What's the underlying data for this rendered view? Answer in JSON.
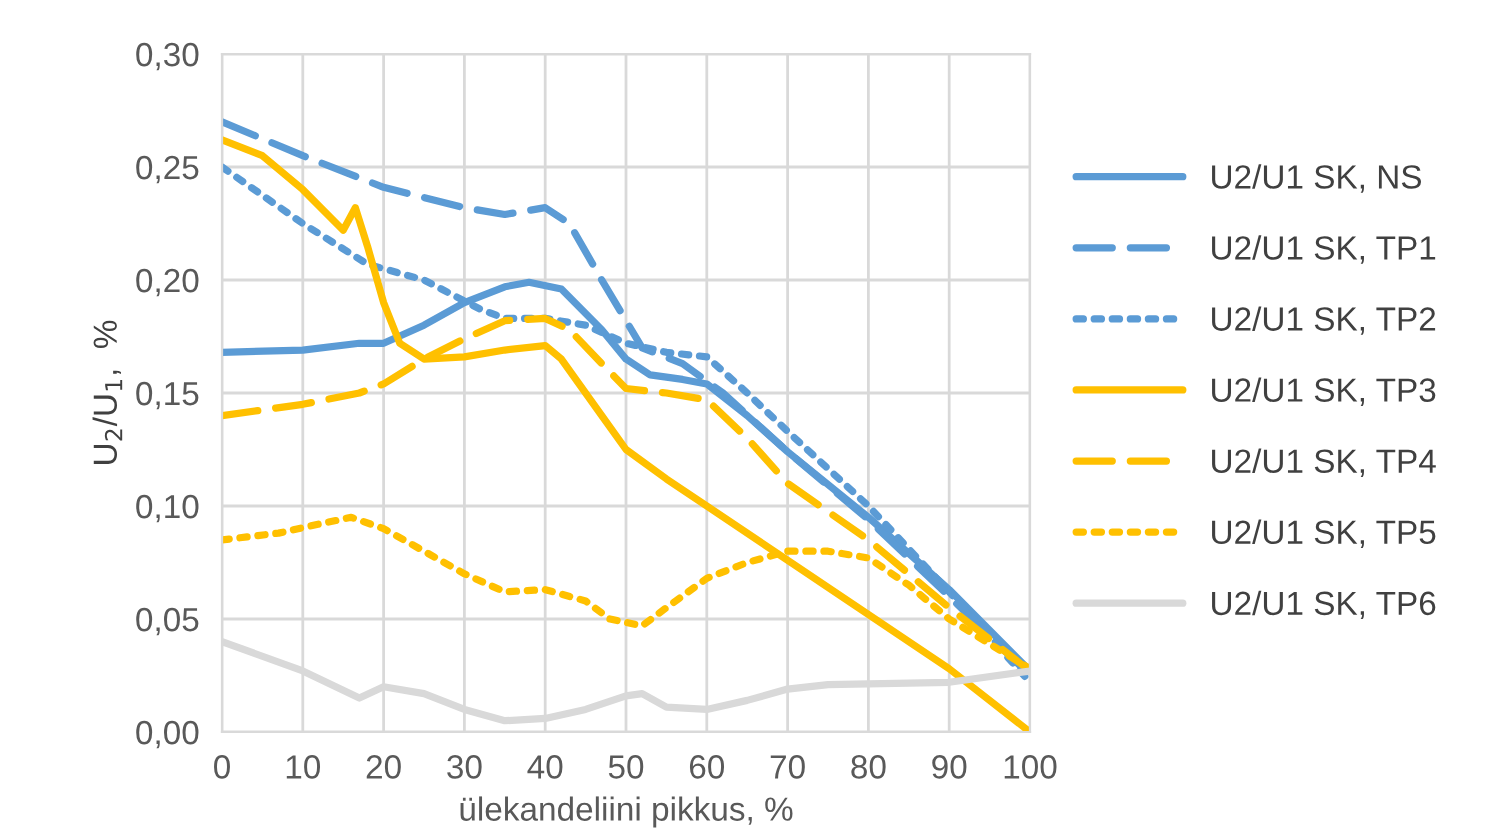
{
  "chart_data": {
    "type": "line",
    "xlabel": "ülekandeliini pikkus, %",
    "ylabel": "U$_{2}$/U$_{1}$,  %",
    "xlim": [
      0,
      100
    ],
    "xticks": [
      0,
      10,
      20,
      30,
      40,
      50,
      60,
      70,
      80,
      90,
      100
    ],
    "ylim": [
      0,
      0.3
    ],
    "yticks": [
      {
        "value": 0,
        "label": "0,00"
      },
      {
        "value": 0.05,
        "label": "0,05"
      },
      {
        "value": 0.1,
        "label": "0,10"
      },
      {
        "value": 0.15,
        "label": "0,15"
      },
      {
        "value": 0.2,
        "label": "0,20"
      },
      {
        "value": 0.25,
        "label": "0,25"
      },
      {
        "value": 0.3,
        "label": "0,30"
      }
    ],
    "grid": true,
    "legend": "right",
    "series": [
      {
        "name": "U2/U1 SK, NS",
        "color": "#5b9bd5",
        "line_style": "solid",
        "x": [
          0,
          10,
          17,
          20,
          25,
          30,
          35,
          38,
          42,
          47,
          50,
          53,
          57,
          60,
          65,
          70,
          80,
          90,
          100
        ],
        "values": [
          0.168,
          0.169,
          0.172,
          0.172,
          0.18,
          0.19,
          0.197,
          0.199,
          0.196,
          0.178,
          0.165,
          0.158,
          0.156,
          0.154,
          0.14,
          0.124,
          0.095,
          0.063,
          0.027
        ]
      },
      {
        "name": "U2/U1 SK, TP1",
        "color": "#5b9bd5",
        "line_style": "dashed",
        "x": [
          0,
          10,
          20,
          30,
          35,
          40,
          43,
          47,
          52,
          57,
          62,
          70,
          80,
          90,
          100
        ],
        "values": [
          0.27,
          0.255,
          0.241,
          0.232,
          0.229,
          0.232,
          0.225,
          0.2,
          0.17,
          0.163,
          0.15,
          0.124,
          0.094,
          0.06,
          0.025
        ]
      },
      {
        "name": "U2/U1 SK, TP2",
        "color": "#5b9bd5",
        "line_style": "dotted",
        "x": [
          0,
          10,
          18,
          25,
          32,
          35,
          40,
          45,
          50,
          55,
          60,
          65,
          70,
          80,
          90,
          100
        ],
        "values": [
          0.25,
          0.225,
          0.207,
          0.2,
          0.187,
          0.183,
          0.183,
          0.18,
          0.172,
          0.168,
          0.166,
          0.15,
          0.133,
          0.1,
          0.062,
          0.022
        ]
      },
      {
        "name": "U2/U1 SK, TP3",
        "color": "#ffc000",
        "line_style": "solid",
        "x": [
          0,
          5,
          10,
          15,
          16.5,
          18,
          20,
          22,
          25,
          30,
          35,
          40,
          42,
          47,
          50,
          55,
          60,
          70,
          80,
          90,
          100
        ],
        "values": [
          0.262,
          0.255,
          0.24,
          0.222,
          0.232,
          0.215,
          0.19,
          0.172,
          0.165,
          0.166,
          0.169,
          0.171,
          0.165,
          0.14,
          0.125,
          0.112,
          0.1,
          0.076,
          0.052,
          0.028,
          0.0
        ]
      },
      {
        "name": "U2/U1 SK, TP4",
        "color": "#ffc000",
        "line_style": "dashed",
        "x": [
          0,
          10,
          17,
          20,
          25,
          30,
          35,
          40,
          43,
          47,
          50,
          55,
          60,
          65,
          70,
          80,
          90,
          100
        ],
        "values": [
          0.14,
          0.145,
          0.15,
          0.154,
          0.165,
          0.174,
          0.182,
          0.183,
          0.178,
          0.163,
          0.152,
          0.15,
          0.147,
          0.13,
          0.11,
          0.085,
          0.055,
          0.027
        ]
      },
      {
        "name": "U2/U1 SK, TP5",
        "color": "#ffc000",
        "line_style": "dotted",
        "x": [
          0,
          7,
          12,
          16,
          20,
          25,
          30,
          35,
          40,
          45,
          48,
          52,
          55,
          60,
          65,
          70,
          75,
          80,
          85,
          90,
          100
        ],
        "values": [
          0.085,
          0.088,
          0.092,
          0.095,
          0.09,
          0.08,
          0.07,
          0.062,
          0.063,
          0.058,
          0.05,
          0.047,
          0.055,
          0.068,
          0.075,
          0.08,
          0.08,
          0.077,
          0.065,
          0.05,
          0.028
        ]
      },
      {
        "name": "U2/U1 SK, TP6",
        "color": "#d9d9d9",
        "line_style": "solid",
        "x": [
          0,
          10,
          17,
          20,
          25,
          30,
          35,
          40,
          45,
          50,
          52,
          55,
          60,
          65,
          70,
          75,
          90,
          100
        ],
        "values": [
          0.04,
          0.027,
          0.015,
          0.02,
          0.017,
          0.01,
          0.005,
          0.006,
          0.01,
          0.016,
          0.017,
          0.011,
          0.01,
          0.014,
          0.019,
          0.021,
          0.022,
          0.027
        ]
      }
    ]
  }
}
